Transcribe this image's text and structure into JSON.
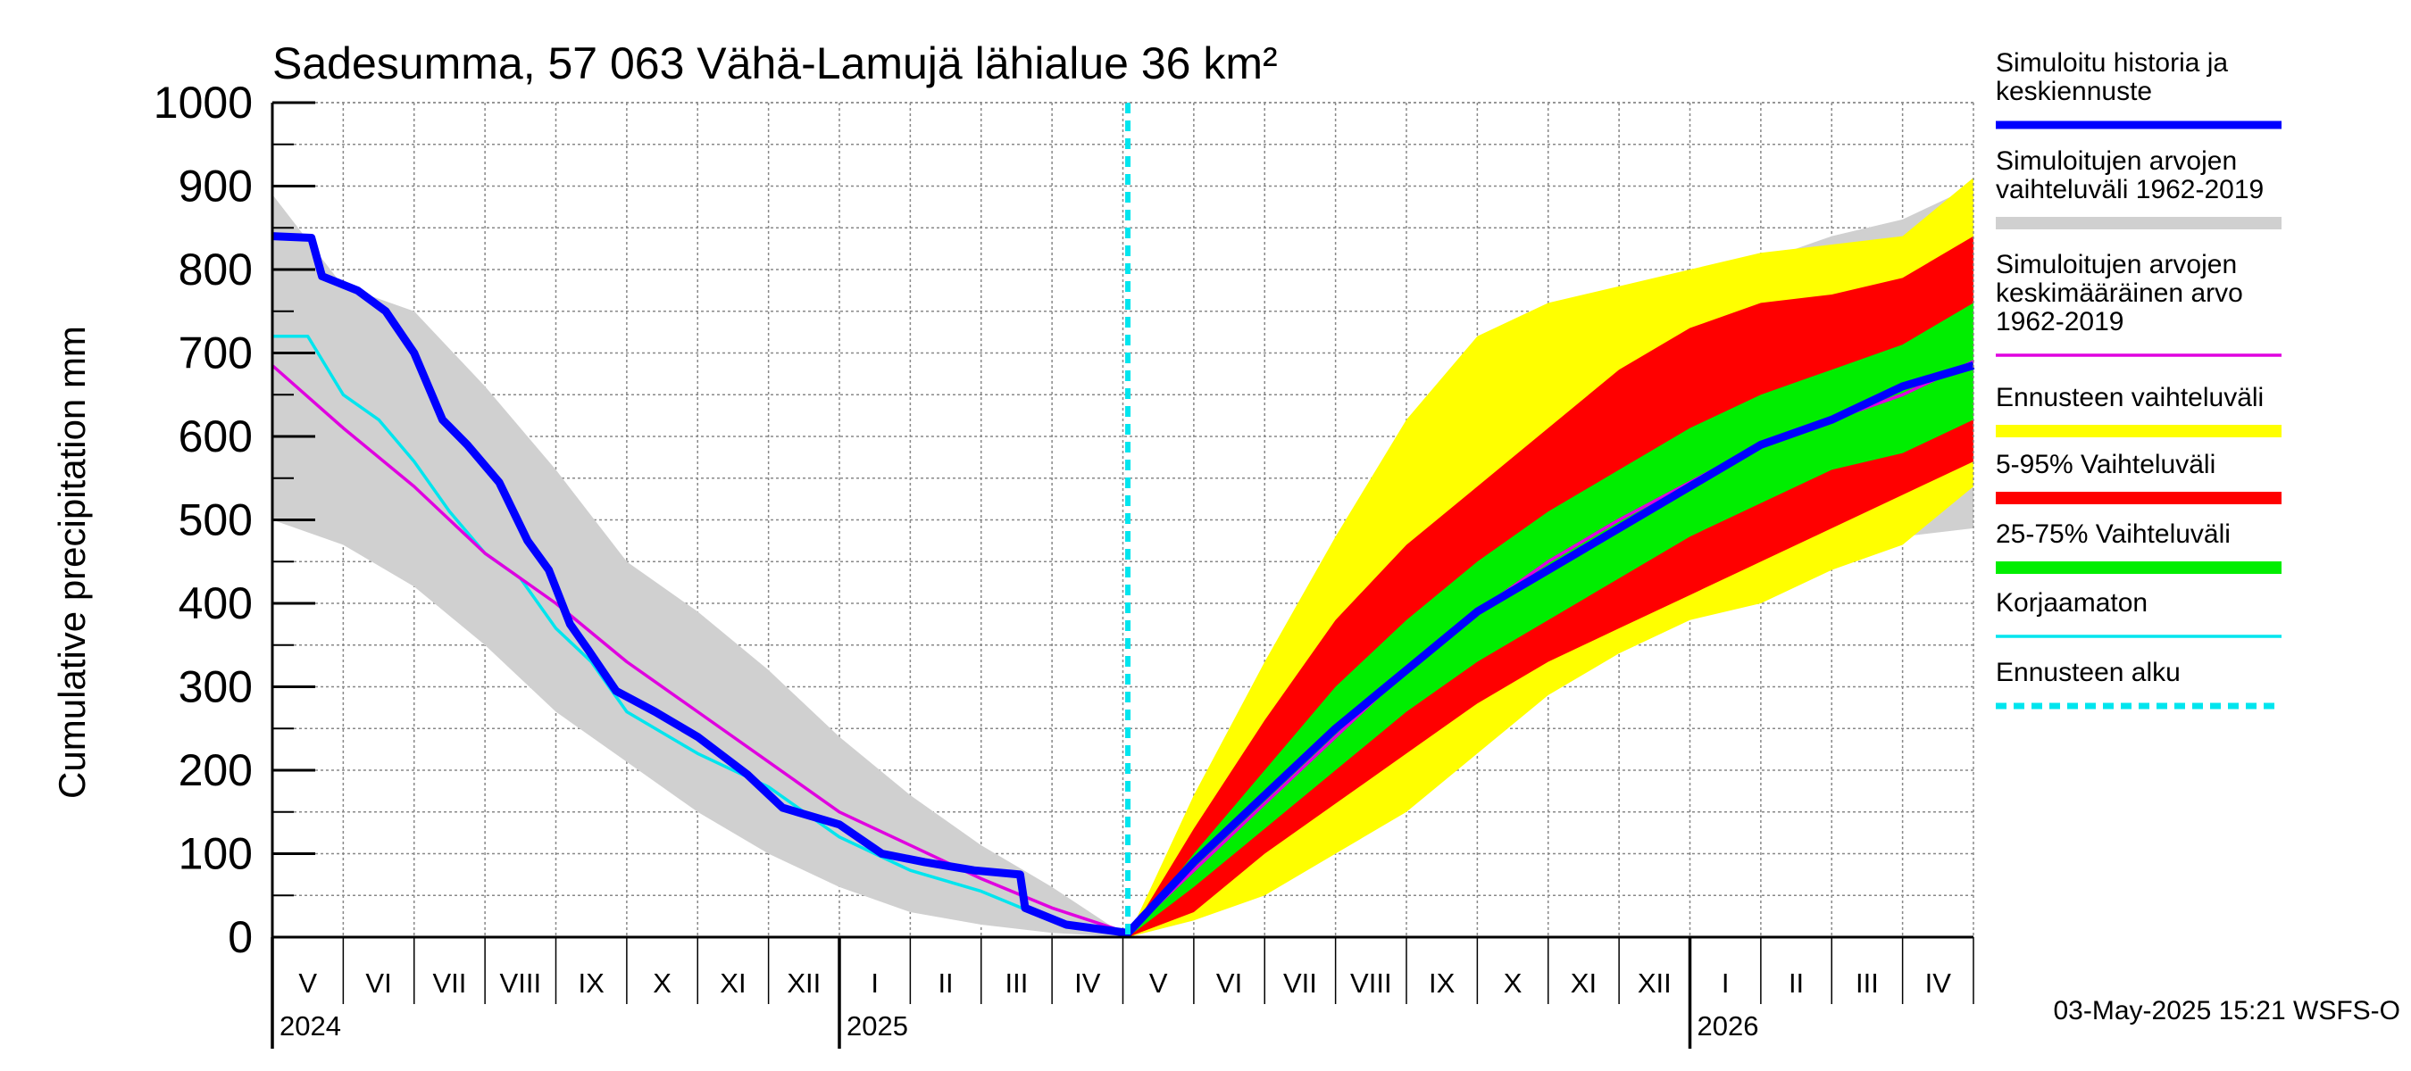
{
  "chart_data": {
    "type": "area",
    "title": "Sadesumma, 57 063 Vähä-Lamujä lähialue 36 km²",
    "ylabel": "Cumulative precipitation   mm",
    "ylim": [
      0,
      1000
    ],
    "yticks": [
      "0",
      "100",
      "200",
      "300",
      "400",
      "500",
      "600",
      "700",
      "800",
      "900",
      "1000"
    ],
    "x_unit": "months since 2024-05-01",
    "xlim": [
      0,
      24
    ],
    "forecast_start_x": 12.07,
    "months": [
      "V",
      "VI",
      "VII",
      "VIII",
      "IX",
      "X",
      "XI",
      "XII",
      "I",
      "II",
      "III",
      "IV",
      "V",
      "VI",
      "VII",
      "VIII",
      "IX",
      "X",
      "XI",
      "XII",
      "I",
      "II",
      "III",
      "IV"
    ],
    "years": [
      {
        "label": "2024",
        "x": 0
      },
      {
        "label": "2025",
        "x": 8
      },
      {
        "label": "2026",
        "x": 20
      }
    ],
    "history_range": {
      "x": [
        0,
        1,
        2,
        3,
        4,
        5,
        6,
        7,
        8,
        9,
        10,
        11,
        12.07
      ],
      "upper": [
        890,
        780,
        750,
        660,
        560,
        450,
        390,
        320,
        240,
        170,
        110,
        60,
        0
      ],
      "lower": [
        500,
        470,
        420,
        350,
        270,
        210,
        150,
        100,
        60,
        30,
        15,
        5,
        0
      ]
    },
    "forecast_bands": {
      "x": [
        12.07,
        13,
        14,
        15,
        16,
        17,
        18,
        19,
        20,
        21,
        22,
        23,
        24
      ],
      "gray": {
        "upper": [
          0,
          150,
          300,
          450,
          560,
          640,
          700,
          740,
          780,
          810,
          840,
          860,
          900
        ],
        "lower": [
          0,
          20,
          60,
          100,
          170,
          240,
          310,
          360,
          410,
          440,
          470,
          480,
          490
        ]
      },
      "yellow": {
        "upper": [
          0,
          170,
          330,
          480,
          620,
          720,
          760,
          780,
          800,
          820,
          830,
          840,
          910
        ],
        "lower": [
          0,
          20,
          50,
          100,
          150,
          220,
          290,
          340,
          380,
          400,
          440,
          470,
          540
        ]
      },
      "red": {
        "upper": [
          0,
          130,
          260,
          380,
          470,
          540,
          610,
          680,
          730,
          760,
          770,
          790,
          840
        ],
        "lower": [
          0,
          30,
          100,
          160,
          220,
          280,
          330,
          370,
          410,
          450,
          490,
          530,
          570
        ]
      },
      "green": {
        "upper": [
          0,
          100,
          200,
          300,
          380,
          450,
          510,
          560,
          610,
          650,
          680,
          710,
          760
        ],
        "lower": [
          0,
          60,
          130,
          200,
          270,
          330,
          380,
          430,
          480,
          520,
          560,
          580,
          620
        ]
      }
    },
    "series": [
      {
        "name": "Simuloitu historia ja keskiennuste",
        "color": "#0000ff",
        "x": [
          0,
          0.55,
          0.7,
          1.2,
          1.6,
          2.0,
          2.4,
          2.75,
          3.2,
          3.6,
          3.9,
          4.2,
          4.45,
          4.85,
          5.4,
          6.0,
          6.7,
          7.2,
          8.0,
          8.6,
          9.2,
          9.9,
          10.55,
          10.62,
          11.2,
          12.07,
          13,
          14,
          15,
          16,
          17,
          18,
          19,
          20,
          21,
          22,
          23,
          24
        ],
        "y": [
          840,
          838,
          792,
          775,
          750,
          700,
          620,
          590,
          545,
          475,
          440,
          375,
          345,
          295,
          270,
          240,
          195,
          155,
          135,
          100,
          90,
          80,
          75,
          35,
          15,
          5,
          90,
          170,
          250,
          320,
          390,
          440,
          490,
          540,
          590,
          620,
          660,
          685
        ]
      },
      {
        "name": "Simuloitujen arvojen keskimääräinen arvo 1962-2019",
        "color": "#e000e0",
        "x": [
          0,
          1,
          2,
          3,
          4,
          5,
          6,
          7,
          8,
          9,
          10,
          11,
          12.07,
          13,
          14,
          15,
          16,
          17,
          18,
          19,
          20,
          21,
          22,
          23,
          24
        ],
        "y": [
          685,
          610,
          540,
          460,
          400,
          330,
          270,
          210,
          150,
          110,
          70,
          35,
          5,
          80,
          160,
          240,
          320,
          390,
          450,
          500,
          545,
          590,
          620,
          650,
          690
        ]
      },
      {
        "name": "Korjaamaton",
        "color": "#00e5ee",
        "x": [
          0,
          0.5,
          1,
          1.5,
          2,
          2.5,
          3,
          3.5,
          4,
          4.5,
          5,
          6,
          7,
          8,
          8.5,
          9,
          10,
          11,
          12.07
        ],
        "y": [
          720,
          720,
          650,
          620,
          570,
          510,
          460,
          430,
          370,
          330,
          270,
          220,
          180,
          120,
          100,
          80,
          55,
          20,
          5
        ]
      }
    ],
    "legend": [
      {
        "label": "Simuloitu historia ja keskiennuste",
        "color": "#0000ff",
        "style": "line"
      },
      {
        "label": "Simuloitujen arvojen vaihteluväli 1962-2019",
        "color": "#d0d0d0",
        "style": "band"
      },
      {
        "label": "Simuloitujen arvojen keskimääräinen arvo 1962-2019",
        "color": "#e000e0",
        "style": "thin"
      },
      {
        "label": "Ennusteen vaihteluväli",
        "color": "#ffff00",
        "style": "band"
      },
      {
        "label": "5-95% Vaihteluväli",
        "color": "#ff0000",
        "style": "band"
      },
      {
        "label": "25-75% Vaihteluväli",
        "color": "#00ee00",
        "style": "band"
      },
      {
        "label": "Korjaamaton",
        "color": "#00e5ee",
        "style": "thin"
      },
      {
        "label": "Ennusteen alku",
        "color": "#00e5ee",
        "style": "dashed"
      }
    ],
    "legend_display": [
      [
        "Simuloitu historia ja",
        "keskiennuste"
      ],
      [
        "Simuloitujen arvojen",
        "vaihteluväli 1962-2019"
      ],
      [
        "Simuloitujen arvojen",
        "keskimääräinen arvo",
        "   1962-2019"
      ],
      [
        "Ennusteen vaihteluväli"
      ],
      [
        "5-95% Vaihteluväli"
      ],
      [
        "25-75% Vaihteluväli"
      ],
      [
        "Korjaamaton"
      ],
      [
        "Ennusteen alku"
      ]
    ]
  },
  "footer": "03-May-2025 15:21 WSFS-O"
}
